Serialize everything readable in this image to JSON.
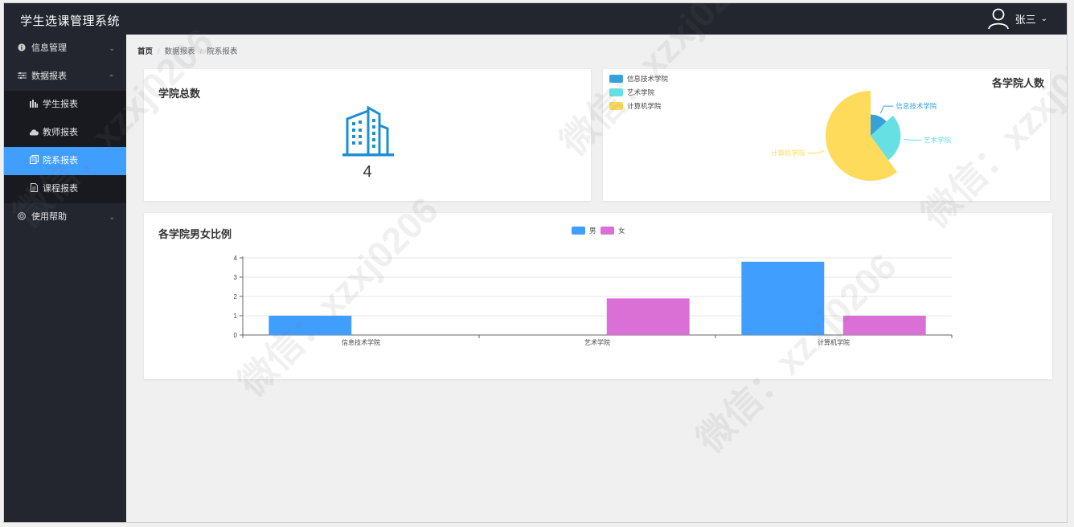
{
  "app": {
    "title": "学生选课管理系统"
  },
  "user": {
    "name": "张三"
  },
  "sidebar": {
    "items": [
      {
        "label": "信息管理",
        "icon": "info-icon"
      },
      {
        "label": "数据报表",
        "icon": "sliders-icon",
        "children": [
          {
            "label": "学生报表",
            "icon": "bar-chart-icon"
          },
          {
            "label": "教师报表",
            "icon": "cloud-icon"
          },
          {
            "label": "院系报表",
            "icon": "copy-icon",
            "active": true
          },
          {
            "label": "课程报表",
            "icon": "document-icon"
          }
        ]
      },
      {
        "label": "使用帮助",
        "icon": "help-icon"
      }
    ]
  },
  "breadcrumb": [
    "首页",
    "数据报表",
    "院系报表"
  ],
  "summary_card": {
    "title": "学院总数",
    "value": "4",
    "icon": "building-icon"
  },
  "pie_card": {
    "title": "各学院人数"
  },
  "bar_card": {
    "title": "各学院男女比例"
  },
  "colors": {
    "accent": "#409eff",
    "sidebar_bg": "#23262e",
    "male": "#409eff",
    "female": "#da70d6",
    "pie": [
      "#37a2da",
      "#67e0e3",
      "#ffdb5c"
    ]
  },
  "watermark_text": "微信：xzxj0206",
  "chart_data": [
    {
      "type": "pie",
      "title": "各学院人数",
      "legend_position": "top-left",
      "categories": [
        "信息技术学院",
        "艺术学院",
        "计算机学院"
      ],
      "values": [
        1,
        2,
        4.5
      ],
      "colors": [
        "#37a2da",
        "#67e0e3",
        "#ffdb5c"
      ]
    },
    {
      "type": "bar",
      "title": "各学院男女比例",
      "legend_position": "top",
      "categories": [
        "信息技术学院",
        "艺术学院",
        "计算机学院"
      ],
      "series": [
        {
          "name": "男",
          "values": [
            1,
            0,
            3.8
          ],
          "color": "#409eff"
        },
        {
          "name": "女",
          "values": [
            0,
            1.9,
            1
          ],
          "color": "#da70d6"
        }
      ],
      "yticks": [
        "0",
        "1",
        "2",
        "3",
        "4"
      ],
      "ylim": [
        0,
        4
      ],
      "grid": true
    }
  ]
}
